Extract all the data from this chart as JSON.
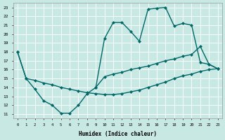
{
  "xlabel": "Humidex (Indice chaleur)",
  "xlim_min": -0.5,
  "xlim_max": 23.5,
  "ylim_min": 10.5,
  "ylim_max": 23.5,
  "yticks": [
    11,
    12,
    13,
    14,
    15,
    16,
    17,
    18,
    19,
    20,
    21,
    22,
    23
  ],
  "xticks": [
    0,
    1,
    2,
    3,
    4,
    5,
    6,
    7,
    8,
    9,
    10,
    11,
    12,
    13,
    14,
    15,
    16,
    17,
    18,
    19,
    20,
    21,
    22,
    23
  ],
  "background_color": "#c8e8e4",
  "line_color": "#006868",
  "line1_x": [
    0,
    1,
    2,
    3,
    4,
    5,
    6,
    7,
    8,
    9,
    10,
    11,
    12,
    13,
    14,
    15,
    16,
    17,
    18,
    19,
    20,
    21,
    22,
    23
  ],
  "line1_y": [
    18,
    15,
    13.8,
    12.5,
    12.0,
    11.1,
    11.1,
    12.0,
    13.3,
    14.0,
    15.2,
    15.5,
    15.7,
    16.0,
    16.2,
    16.4,
    16.7,
    17.0,
    17.2,
    17.5,
    17.7,
    18.6,
    16.6,
    16.1
  ],
  "line2_x": [
    0,
    1,
    2,
    3,
    4,
    5,
    6,
    7,
    8,
    9,
    10,
    11,
    12,
    13,
    14,
    15,
    16,
    17,
    18,
    19,
    20,
    21,
    22,
    23
  ],
  "line2_y": [
    18,
    15,
    14.8,
    14.5,
    14.3,
    14.0,
    13.8,
    13.6,
    13.4,
    13.3,
    13.2,
    13.2,
    13.3,
    13.5,
    13.7,
    14.0,
    14.3,
    14.6,
    15.0,
    15.3,
    15.5,
    15.8,
    16.0,
    16.1
  ],
  "line3_x": [
    9,
    10,
    11,
    12,
    13,
    14,
    15,
    16,
    17,
    18,
    19,
    20,
    21,
    22,
    23
  ],
  "line3_y": [
    14.0,
    19.5,
    21.3,
    21.3,
    20.3,
    19.2,
    22.8,
    22.9,
    23.0,
    20.9,
    21.2,
    21.0,
    16.8,
    16.6,
    16.1
  ]
}
